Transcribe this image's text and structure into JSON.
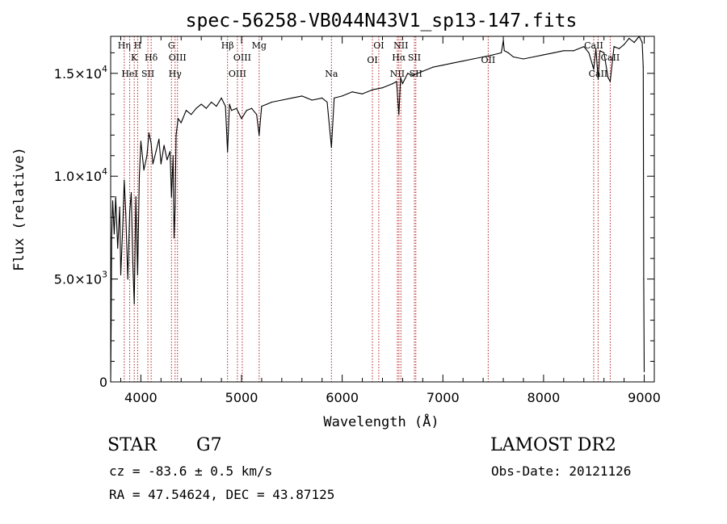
{
  "chart_data": {
    "type": "line",
    "title": "spec-56258-VB044N43V1_sp13-147.fits",
    "xlabel": "Wavelength (Å)",
    "ylabel": "Flux (relative)",
    "xlim": [
      3700,
      9100
    ],
    "ylim": [
      0,
      16800
    ],
    "x_ticks": [
      4000,
      5000,
      6000,
      7000,
      8000,
      9000
    ],
    "x_tick_labels": [
      "4000",
      "5000",
      "6000",
      "7000",
      "8000",
      "9000"
    ],
    "y_ticks": [
      0,
      5000,
      10000,
      15000
    ],
    "y_tick_labels": [
      {
        "mantissa": "0",
        "exp": ""
      },
      {
        "mantissa": "5.0×10",
        "exp": "3"
      },
      {
        "mantissa": "1.0×10",
        "exp": "4"
      },
      {
        "mantissa": "1.5×10",
        "exp": "4"
      }
    ],
    "grid": false,
    "line_color": "#000000",
    "marker_color": "#b22222",
    "line_markers": [
      {
        "wavelength": 3835,
        "top_label": "Hη",
        "top_row": 0,
        "bottom_label": "",
        "bottom_row": 0
      },
      {
        "wavelength": 3889,
        "top_label": "",
        "top_row": 0,
        "bottom_label": "HeI",
        "bottom_row": 1
      },
      {
        "wavelength": 3934,
        "top_label": "K",
        "top_row": 1,
        "bottom_label": "",
        "bottom_row": 0
      },
      {
        "wavelength": 3968,
        "top_label": "H",
        "top_row": 0,
        "bottom_label": "",
        "bottom_row": 0
      },
      {
        "wavelength": 4070,
        "top_label": "",
        "top_row": 0,
        "bottom_label": "SII",
        "bottom_row": 1
      },
      {
        "wavelength": 4102,
        "top_label": "Hδ",
        "top_row": 1,
        "bottom_label": "",
        "bottom_row": 0
      },
      {
        "wavelength": 4304,
        "top_label": "G",
        "top_row": 0,
        "bottom_label": "",
        "bottom_row": 0
      },
      {
        "wavelength": 4340,
        "top_label": "",
        "top_row": 0,
        "bottom_label": "Hγ",
        "bottom_row": 1
      },
      {
        "wavelength": 4364,
        "top_label": "OIII",
        "top_row": 1,
        "bottom_label": "",
        "bottom_row": 0
      },
      {
        "wavelength": 4861,
        "top_label": "Hβ",
        "top_row": 0,
        "bottom_label": "",
        "bottom_row": 0
      },
      {
        "wavelength": 4959,
        "top_label": "",
        "top_row": 0,
        "bottom_label": "OIII",
        "bottom_row": 1
      },
      {
        "wavelength": 5007,
        "top_label": "OIII",
        "top_row": 1,
        "bottom_label": "",
        "bottom_row": 0
      },
      {
        "wavelength": 5175,
        "top_label": "Mg",
        "top_row": 0,
        "bottom_label": "",
        "bottom_row": 0
      },
      {
        "wavelength": 5893,
        "top_label": "",
        "top_row": 0,
        "bottom_label": "Na",
        "bottom_row": 1
      },
      {
        "wavelength": 6300,
        "top_label": "",
        "top_row": 0,
        "bottom_label": "OI",
        "bottom_row": 0
      },
      {
        "wavelength": 6363,
        "top_label": "OI",
        "top_row": 0,
        "bottom_label": "",
        "bottom_row": 0
      },
      {
        "wavelength": 6548,
        "top_label": "",
        "top_row": 0,
        "bottom_label": "NII",
        "bottom_row": 1
      },
      {
        "wavelength": 6563,
        "top_label": "Hα",
        "top_row": 1,
        "bottom_label": "",
        "bottom_row": 0
      },
      {
        "wavelength": 6583,
        "top_label": "NII",
        "top_row": 0,
        "bottom_label": "",
        "bottom_row": 0
      },
      {
        "wavelength": 6717,
        "top_label": "SII",
        "top_row": 1,
        "bottom_label": "",
        "bottom_row": 0
      },
      {
        "wavelength": 6731,
        "top_label": "",
        "top_row": 0,
        "bottom_label": "SII",
        "bottom_row": 1
      },
      {
        "wavelength": 7450,
        "top_label": "",
        "top_row": 0,
        "bottom_label": "OII",
        "bottom_row": 0
      },
      {
        "wavelength": 8498,
        "top_label": "CaII",
        "top_row": 0,
        "bottom_label": "",
        "bottom_row": 0
      },
      {
        "wavelength": 8542,
        "top_label": "",
        "top_row": 0,
        "bottom_label": "CaII",
        "bottom_row": 1
      },
      {
        "wavelength": 8662,
        "top_label": "CaII",
        "top_row": 1,
        "bottom_label": "",
        "bottom_row": 0
      }
    ],
    "series": [
      {
        "x": [
          3700,
          3705,
          3710,
          3720,
          3735,
          3750,
          3770,
          3790,
          3800,
          3820,
          3835,
          3850,
          3870,
          3889,
          3905,
          3920,
          3934,
          3950,
          3968,
          3985,
          4000,
          4030,
          4060,
          4080,
          4102,
          4120,
          4150,
          4180,
          4200,
          4230,
          4260,
          4290,
          4304,
          4320,
          4330,
          4340,
          4350,
          4370,
          4400,
          4450,
          4500,
          4550,
          4600,
          4650,
          4700,
          4750,
          4800,
          4840,
          4861,
          4880,
          4900,
          4950,
          5000,
          5050,
          5100,
          5150,
          5175,
          5200,
          5250,
          5300,
          5400,
          5500,
          5600,
          5700,
          5800,
          5850,
          5893,
          5920,
          6000,
          6100,
          6200,
          6300,
          6400,
          6500,
          6540,
          6563,
          6580,
          6600,
          6650,
          6700,
          6800,
          6900,
          7000,
          7100,
          7200,
          7300,
          7400,
          7500,
          7580,
          7600,
          7610,
          7650,
          7700,
          7800,
          7900,
          8000,
          8100,
          8200,
          8300,
          8400,
          8450,
          8498,
          8520,
          8542,
          8560,
          8600,
          8640,
          8662,
          8700,
          8750,
          8800,
          8850,
          8900,
          8950,
          8980,
          8990,
          8995,
          9000
        ],
        "y": [
          0,
          2800,
          7000,
          8800,
          7200,
          9000,
          6500,
          8500,
          5200,
          7600,
          9800,
          8200,
          5000,
          8300,
          9200,
          5800,
          3800,
          9000,
          5200,
          10000,
          11700,
          10300,
          11000,
          12100,
          11600,
          10600,
          11200,
          11800,
          10600,
          11500,
          10800,
          11200,
          9000,
          11000,
          7000,
          8500,
          12000,
          12800,
          12600,
          13200,
          13000,
          13300,
          13500,
          13300,
          13600,
          13400,
          13800,
          13400,
          11200,
          13500,
          13200,
          13300,
          12800,
          13200,
          13300,
          13000,
          12000,
          13400,
          13500,
          13600,
          13700,
          13800,
          13900,
          13700,
          13800,
          13600,
          11400,
          13800,
          13900,
          14100,
          14000,
          14200,
          14300,
          14500,
          14600,
          13000,
          14800,
          14500,
          15000,
          14900,
          15100,
          15300,
          15400,
          15500,
          15600,
          15700,
          15800,
          15900,
          16000,
          16600,
          16100,
          16000,
          15800,
          15700,
          15800,
          15900,
          16000,
          16100,
          16100,
          16300,
          16000,
          15200,
          16200,
          14700,
          16100,
          16000,
          14800,
          14600,
          16300,
          16200,
          16400,
          16700,
          16500,
          16800,
          16500,
          15300,
          5000,
          500
        ]
      }
    ]
  },
  "info": {
    "object_class": "STAR",
    "subclass": "G7",
    "survey": "LAMOST DR2",
    "redshift": "cz = -83.6 ± 0.5 km/s",
    "obs_date": "Obs-Date: 20121126",
    "coords": "RA =  47.54624, DEC =  43.87125"
  }
}
